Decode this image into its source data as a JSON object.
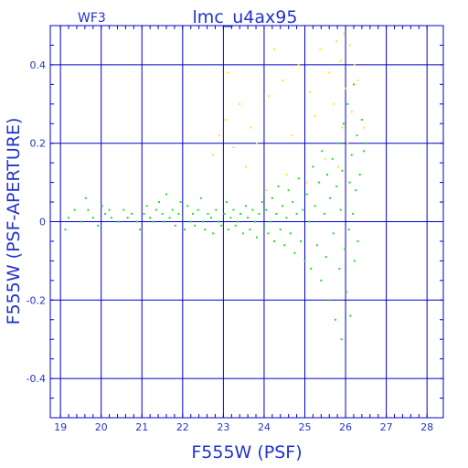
{
  "chart_data": {
    "type": "scatter",
    "title": "lmc_u4ax95",
    "chip_label": "WF3",
    "xlabel": "F555W (PSF)",
    "ylabel": "F555W (PSF-APERTURE)",
    "xlim": [
      18.75,
      28.4
    ],
    "ylim": [
      -0.5,
      0.5
    ],
    "x_ticks": [
      19,
      20,
      21,
      22,
      23,
      24,
      25,
      26,
      27,
      28
    ],
    "y_ticks": [
      -0.4,
      -0.2,
      0,
      0.2,
      0.4
    ],
    "x_tick_labels": [
      "19",
      "20",
      "21",
      "22",
      "23",
      "24",
      "25",
      "26",
      "27",
      "28"
    ],
    "y_tick_labels": [
      "-0.4",
      "-0.2",
      "0",
      "0.2",
      "0.4"
    ],
    "grid": true,
    "colors": {
      "axes": "#0000cc",
      "text": "#2233cc",
      "series_main": "#22dd22",
      "series_secondary": "#eeee22"
    },
    "series": [
      {
        "color": "#22dd22",
        "points": [
          [
            19.12,
            -0.02
          ],
          [
            19.2,
            0.01
          ],
          [
            19.35,
            0.03
          ],
          [
            19.5,
            0.0
          ],
          [
            19.62,
            0.06
          ],
          [
            19.68,
            0.03
          ],
          [
            19.8,
            0.01
          ],
          [
            19.92,
            -0.01
          ],
          [
            20.02,
            0.04
          ],
          [
            20.1,
            0.02
          ],
          [
            20.2,
            0.03
          ],
          [
            20.25,
            0.01
          ],
          [
            20.42,
            0.0
          ],
          [
            20.55,
            0.03
          ],
          [
            20.65,
            0.01
          ],
          [
            20.75,
            0.02
          ],
          [
            20.88,
            0.0
          ],
          [
            20.95,
            -0.02
          ],
          [
            21.05,
            0.02
          ],
          [
            21.12,
            0.04
          ],
          [
            21.2,
            0.01
          ],
          [
            21.28,
            0.0
          ],
          [
            21.35,
            0.03
          ],
          [
            21.42,
            0.05
          ],
          [
            21.5,
            0.02
          ],
          [
            21.55,
            0.0
          ],
          [
            21.6,
            0.07
          ],
          [
            21.68,
            0.01
          ],
          [
            21.75,
            0.03
          ],
          [
            21.82,
            -0.01
          ],
          [
            21.9,
            0.02
          ],
          [
            21.95,
            0.05
          ],
          [
            22.0,
            0.01
          ],
          [
            22.05,
            -0.02
          ],
          [
            22.12,
            0.04
          ],
          [
            22.2,
            0.0
          ],
          [
            22.25,
            0.02
          ],
          [
            22.3,
            -0.01
          ],
          [
            22.38,
            0.03
          ],
          [
            22.45,
            0.06
          ],
          [
            22.5,
            0.0
          ],
          [
            22.55,
            -0.02
          ],
          [
            22.62,
            0.02
          ],
          [
            22.7,
            0.01
          ],
          [
            22.75,
            -0.03
          ],
          [
            22.82,
            0.03
          ],
          [
            22.88,
            0.0
          ],
          [
            22.95,
            -0.01
          ],
          [
            23.02,
            0.02
          ],
          [
            23.08,
            0.05
          ],
          [
            23.12,
            -0.02
          ],
          [
            23.18,
            0.01
          ],
          [
            23.25,
            0.03
          ],
          [
            23.3,
            -0.01
          ],
          [
            23.35,
            0.0
          ],
          [
            23.42,
            0.02
          ],
          [
            23.48,
            -0.03
          ],
          [
            23.55,
            0.04
          ],
          [
            23.6,
            0.01
          ],
          [
            23.65,
            -0.02
          ],
          [
            23.72,
            0.03
          ],
          [
            23.78,
            0.0
          ],
          [
            23.82,
            -0.04
          ],
          [
            23.88,
            0.02
          ],
          [
            23.95,
            0.05
          ],
          [
            24.0,
            -0.01
          ],
          [
            24.05,
            0.03
          ],
          [
            24.1,
            -0.03
          ],
          [
            24.15,
            0.0
          ],
          [
            24.2,
            0.06
          ],
          [
            24.25,
            -0.05
          ],
          [
            24.3,
            0.02
          ],
          [
            24.35,
            0.09
          ],
          [
            24.4,
            -0.02
          ],
          [
            24.45,
            0.04
          ],
          [
            24.5,
            -0.06
          ],
          [
            24.55,
            0.01
          ],
          [
            24.6,
            0.08
          ],
          [
            24.65,
            -0.03
          ],
          [
            24.7,
            0.05
          ],
          [
            24.75,
            -0.08
          ],
          [
            24.8,
            0.02
          ],
          [
            24.85,
            0.11
          ],
          [
            24.9,
            -0.05
          ],
          [
            24.95,
            0.03
          ],
          [
            25.0,
            -0.1
          ],
          [
            25.05,
            0.07
          ],
          [
            25.1,
            0.0
          ],
          [
            25.15,
            -0.12
          ],
          [
            25.2,
            0.14
          ],
          [
            25.25,
            0.04
          ],
          [
            25.3,
            -0.06
          ],
          [
            25.35,
            0.1
          ],
          [
            25.4,
            -0.15
          ],
          [
            25.42,
            0.18
          ],
          [
            25.48,
            0.02
          ],
          [
            25.52,
            -0.09
          ],
          [
            25.55,
            0.12
          ],
          [
            25.6,
            -0.2
          ],
          [
            25.62,
            0.06
          ],
          [
            25.68,
            0.16
          ],
          [
            25.7,
            -0.03
          ],
          [
            25.75,
            -0.25
          ],
          [
            25.78,
            0.09
          ],
          [
            25.82,
            0.2
          ],
          [
            25.85,
            -0.12
          ],
          [
            25.88,
            0.03
          ],
          [
            25.9,
            -0.3
          ],
          [
            25.92,
            0.13
          ],
          [
            25.95,
            0.25
          ],
          [
            25.98,
            -0.07
          ],
          [
            26.0,
            0.05
          ],
          [
            26.02,
            -0.18
          ],
          [
            26.05,
            0.3
          ],
          [
            26.08,
            -0.02
          ],
          [
            26.1,
            0.1
          ],
          [
            26.12,
            -0.24
          ],
          [
            26.15,
            0.17
          ],
          [
            26.18,
            0.02
          ],
          [
            26.2,
            0.35
          ],
          [
            26.22,
            -0.1
          ],
          [
            26.25,
            0.08
          ],
          [
            26.28,
            0.22
          ],
          [
            26.3,
            -0.05
          ],
          [
            26.35,
            0.12
          ],
          [
            26.4,
            0.26
          ],
          [
            26.45,
            0.18
          ],
          [
            26.5,
            0.2
          ]
        ]
      },
      {
        "color": "#eeee22",
        "points": [
          [
            22.75,
            0.17
          ],
          [
            22.9,
            0.22
          ],
          [
            23.05,
            0.26
          ],
          [
            23.12,
            0.38
          ],
          [
            23.25,
            0.19
          ],
          [
            23.4,
            0.3
          ],
          [
            23.55,
            0.14
          ],
          [
            23.68,
            0.24
          ],
          [
            23.82,
            0.2
          ],
          [
            24.05,
            0.08
          ],
          [
            24.12,
            0.32
          ],
          [
            24.25,
            0.44
          ],
          [
            24.45,
            0.36
          ],
          [
            24.55,
            0.12
          ],
          [
            24.68,
            0.22
          ],
          [
            24.85,
            0.4
          ],
          [
            25.05,
            0.1
          ],
          [
            25.12,
            0.33
          ],
          [
            25.25,
            0.27
          ],
          [
            25.38,
            0.44
          ],
          [
            25.5,
            0.16
          ],
          [
            25.6,
            0.38
          ],
          [
            25.7,
            0.3
          ],
          [
            25.78,
            0.46
          ],
          [
            25.82,
            0.14
          ],
          [
            25.88,
            0.41
          ],
          [
            25.92,
            0.24
          ],
          [
            25.96,
            0.48
          ],
          [
            26.0,
            0.34
          ],
          [
            26.05,
            0.2
          ],
          [
            26.1,
            0.45
          ],
          [
            26.15,
            0.28
          ],
          [
            26.22,
            0.4
          ],
          [
            26.3,
            0.36
          ],
          [
            26.45,
            0.24
          ]
        ]
      }
    ]
  }
}
